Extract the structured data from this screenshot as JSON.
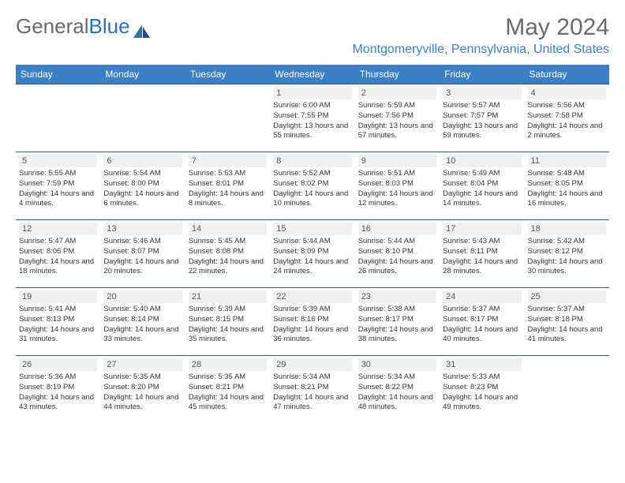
{
  "brand": {
    "part1": "General",
    "part2": "Blue"
  },
  "title": "May 2024",
  "location": "Montgomeryville, Pennsylvania, United States",
  "colors": {
    "header_bg": "#3b7fc4",
    "header_text": "#ffffff",
    "border": "#2d5a8a",
    "daynum_bg": "#eef0f2",
    "daynum_text": "#555555",
    "title_text": "#6a6a6a",
    "location_text": "#3b7fc4"
  },
  "day_headers": [
    "Sunday",
    "Monday",
    "Tuesday",
    "Wednesday",
    "Thursday",
    "Friday",
    "Saturday"
  ],
  "weeks": [
    [
      null,
      null,
      null,
      {
        "d": "1",
        "sr": "6:00 AM",
        "ss": "7:55 PM",
        "dl": "13 hours and 55 minutes."
      },
      {
        "d": "2",
        "sr": "5:59 AM",
        "ss": "7:56 PM",
        "dl": "13 hours and 57 minutes."
      },
      {
        "d": "3",
        "sr": "5:57 AM",
        "ss": "7:57 PM",
        "dl": "13 hours and 59 minutes."
      },
      {
        "d": "4",
        "sr": "5:56 AM",
        "ss": "7:58 PM",
        "dl": "14 hours and 2 minutes."
      }
    ],
    [
      {
        "d": "5",
        "sr": "5:55 AM",
        "ss": "7:59 PM",
        "dl": "14 hours and 4 minutes."
      },
      {
        "d": "6",
        "sr": "5:54 AM",
        "ss": "8:00 PM",
        "dl": "14 hours and 6 minutes."
      },
      {
        "d": "7",
        "sr": "5:53 AM",
        "ss": "8:01 PM",
        "dl": "14 hours and 8 minutes."
      },
      {
        "d": "8",
        "sr": "5:52 AM",
        "ss": "8:02 PM",
        "dl": "14 hours and 10 minutes."
      },
      {
        "d": "9",
        "sr": "5:51 AM",
        "ss": "8:03 PM",
        "dl": "14 hours and 12 minutes."
      },
      {
        "d": "10",
        "sr": "5:49 AM",
        "ss": "8:04 PM",
        "dl": "14 hours and 14 minutes."
      },
      {
        "d": "11",
        "sr": "5:48 AM",
        "ss": "8:05 PM",
        "dl": "14 hours and 16 minutes."
      }
    ],
    [
      {
        "d": "12",
        "sr": "5:47 AM",
        "ss": "8:06 PM",
        "dl": "14 hours and 18 minutes."
      },
      {
        "d": "13",
        "sr": "5:46 AM",
        "ss": "8:07 PM",
        "dl": "14 hours and 20 minutes."
      },
      {
        "d": "14",
        "sr": "5:45 AM",
        "ss": "8:08 PM",
        "dl": "14 hours and 22 minutes."
      },
      {
        "d": "15",
        "sr": "5:44 AM",
        "ss": "8:09 PM",
        "dl": "14 hours and 24 minutes."
      },
      {
        "d": "16",
        "sr": "5:44 AM",
        "ss": "8:10 PM",
        "dl": "14 hours and 26 minutes."
      },
      {
        "d": "17",
        "sr": "5:43 AM",
        "ss": "8:11 PM",
        "dl": "14 hours and 28 minutes."
      },
      {
        "d": "18",
        "sr": "5:42 AM",
        "ss": "8:12 PM",
        "dl": "14 hours and 30 minutes."
      }
    ],
    [
      {
        "d": "19",
        "sr": "5:41 AM",
        "ss": "8:13 PM",
        "dl": "14 hours and 31 minutes."
      },
      {
        "d": "20",
        "sr": "5:40 AM",
        "ss": "8:14 PM",
        "dl": "14 hours and 33 minutes."
      },
      {
        "d": "21",
        "sr": "5:39 AM",
        "ss": "8:15 PM",
        "dl": "14 hours and 35 minutes."
      },
      {
        "d": "22",
        "sr": "5:39 AM",
        "ss": "8:16 PM",
        "dl": "14 hours and 36 minutes."
      },
      {
        "d": "23",
        "sr": "5:38 AM",
        "ss": "8:17 PM",
        "dl": "14 hours and 38 minutes."
      },
      {
        "d": "24",
        "sr": "5:37 AM",
        "ss": "8:17 PM",
        "dl": "14 hours and 40 minutes."
      },
      {
        "d": "25",
        "sr": "5:37 AM",
        "ss": "8:18 PM",
        "dl": "14 hours and 41 minutes."
      }
    ],
    [
      {
        "d": "26",
        "sr": "5:36 AM",
        "ss": "8:19 PM",
        "dl": "14 hours and 43 minutes."
      },
      {
        "d": "27",
        "sr": "5:35 AM",
        "ss": "8:20 PM",
        "dl": "14 hours and 44 minutes."
      },
      {
        "d": "28",
        "sr": "5:35 AM",
        "ss": "8:21 PM",
        "dl": "14 hours and 45 minutes."
      },
      {
        "d": "29",
        "sr": "5:34 AM",
        "ss": "8:21 PM",
        "dl": "14 hours and 47 minutes."
      },
      {
        "d": "30",
        "sr": "5:34 AM",
        "ss": "8:22 PM",
        "dl": "14 hours and 48 minutes."
      },
      {
        "d": "31",
        "sr": "5:33 AM",
        "ss": "8:23 PM",
        "dl": "14 hours and 49 minutes."
      },
      null
    ]
  ],
  "labels": {
    "sunrise_prefix": "Sunrise: ",
    "sunset_prefix": "Sunset: ",
    "daylight_prefix": "Daylight: "
  }
}
